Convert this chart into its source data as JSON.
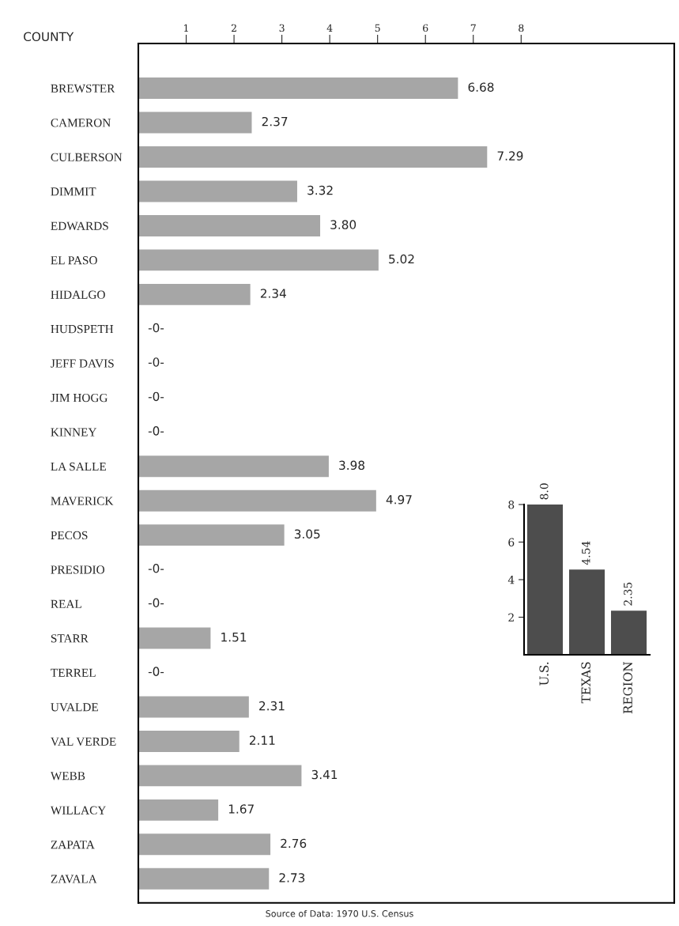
{
  "chart_data": [
    {
      "type": "bar",
      "orientation": "horizontal",
      "ylabel": "COUNTY",
      "categories": [
        "BREWSTER",
        "CAMERON",
        "CULBERSON",
        "DIMMIT",
        "EDWARDS",
        "EL PASO",
        "HIDALGO",
        "HUDSPETH",
        "JEFF DAVIS",
        "JIM HOGG",
        "KINNEY",
        "LA SALLE",
        "MAVERICK",
        "PECOS",
        "PRESIDIO",
        "REAL",
        "STARR",
        "TERREL",
        "UVALDE",
        "VAL VERDE",
        "WEBB",
        "WILLACY",
        "ZAPATA",
        "ZAVALA"
      ],
      "values": [
        6.68,
        2.37,
        7.29,
        3.32,
        3.8,
        5.02,
        2.34,
        0,
        0,
        0,
        0,
        3.98,
        4.97,
        3.05,
        0,
        0,
        1.51,
        0,
        2.31,
        2.11,
        3.41,
        1.67,
        2.76,
        2.73
      ],
      "value_labels": [
        "6.68",
        "2.37",
        "7.29",
        "3.32",
        "3.80",
        "5.02",
        "2.34",
        "-0-",
        "-0-",
        "-0-",
        "-0-",
        "3.98",
        "4.97",
        "3.05",
        "-0-",
        "-0-",
        "1.51",
        "-0-",
        "2.31",
        "2.11",
        "3.41",
        "1.67",
        "2.76",
        "2.73"
      ],
      "color": "#a6a6a6",
      "xlim": [
        0,
        11.2
      ],
      "xticks": [
        1,
        2,
        3,
        4,
        5,
        6,
        7,
        8
      ],
      "grid": false,
      "annotations": [
        "Source of Data: 1970 U.S. Census"
      ]
    },
    {
      "type": "bar",
      "categories": [
        "U.S.",
        "TEXAS",
        "REGION"
      ],
      "values": [
        8.0,
        4.54,
        2.35
      ],
      "value_labels": [
        "8.0",
        "4.54",
        "2.35"
      ],
      "color": "#4d4d4d",
      "ylim": [
        0,
        8
      ],
      "yticks": [
        2,
        4,
        6,
        8
      ],
      "grid": false
    }
  ]
}
